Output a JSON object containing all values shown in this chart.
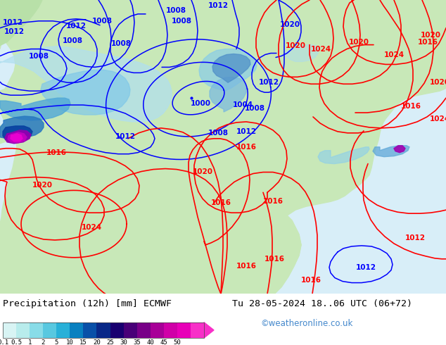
{
  "title_left": "Precipitation (12h) [mm] ECMWF",
  "title_right": "Tu 28-05-2024 18..06 UTC (06+72)",
  "credit": "©weatheronline.co.uk",
  "colorbar_values": [
    "0.1",
    "0.5",
    "1",
    "2",
    "5",
    "10",
    "15",
    "20",
    "25",
    "30",
    "35",
    "40",
    "45",
    "50"
  ],
  "colorbar_colors": [
    "#d8f4f4",
    "#b8ecec",
    "#88dce8",
    "#58c8e0",
    "#28b0d8",
    "#0880c0",
    "#0850a8",
    "#082888",
    "#180070",
    "#480078",
    "#780088",
    "#a80098",
    "#d000a8",
    "#e800b8",
    "#f830c8"
  ],
  "bg_color": "#ffffff",
  "ocean_color": "#d8eef8",
  "land_color": "#c8e8b8",
  "land_color2": "#b8e0a8",
  "gray_land": "#b8b8b8",
  "fig_width": 6.34,
  "fig_height": 4.9,
  "dpi": 100
}
